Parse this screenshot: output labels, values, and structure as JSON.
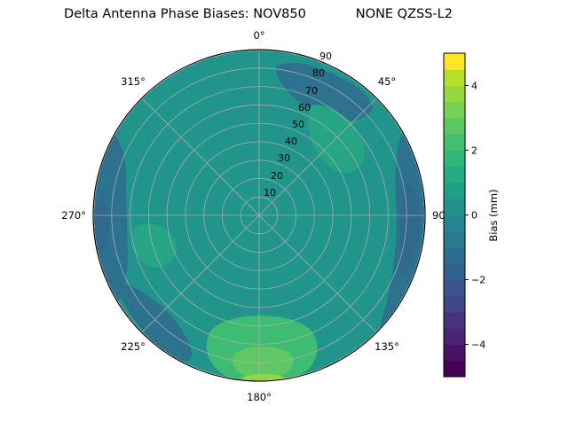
{
  "chart_data": {
    "type": "polar_contour",
    "title_left": "Delta Antenna Phase Biases: NOV850",
    "title_right": "NONE QZSS-L2",
    "theta_tick_labels": [
      "0°",
      "45°",
      "90",
      "135°",
      "180°",
      "225°",
      "270°",
      "315°"
    ],
    "theta_tick_degrees": [
      0,
      45,
      90,
      135,
      180,
      225,
      270,
      315
    ],
    "theta_zero_location": "top",
    "r_tick_labels": [
      "10",
      "20",
      "30",
      "40",
      "50",
      "60",
      "70",
      "80",
      "90"
    ],
    "r_tick_values": [
      10,
      20,
      30,
      40,
      50,
      60,
      70,
      80,
      90
    ],
    "r_max": 90,
    "r_label_angle_deg": 22.5,
    "grid_color": "#b0b0b0",
    "colorbar": {
      "label": "Bias (mm)",
      "tick_labels": [
        "4",
        "2",
        "0",
        "−2",
        "−4"
      ],
      "tick_values": [
        4,
        2,
        0,
        -2,
        -4
      ],
      "range": [
        -5,
        5
      ],
      "colormap": "viridis",
      "segment_colors": [
        "#440154",
        "#471365",
        "#482475",
        "#46327e",
        "#3f4788",
        "#39558c",
        "#33618d",
        "#2d6e8e",
        "#287a8e",
        "#23868e",
        "#1f938b",
        "#1f9f88",
        "#24ab82",
        "#30b679",
        "#44bf70",
        "#5bc863",
        "#76d153",
        "#95d840",
        "#b8de29",
        "#fde725"
      ]
    },
    "regions": [
      {
        "name": "background-sky",
        "bias_mm": "0 to 1",
        "color": "#21948b"
      },
      {
        "name": "north-edge-low",
        "bias_mm": "-1 to -2",
        "color": "#2c728e"
      },
      {
        "name": "east-edge-low",
        "bias_mm": "-1 to -2",
        "color": "#2c728e"
      },
      {
        "name": "east-edge-core",
        "bias_mm": "-2 to -3",
        "color": "#31688e"
      },
      {
        "name": "west-edge-low",
        "bias_mm": "-1 to -2",
        "color": "#2c728e"
      },
      {
        "name": "west-edge-core",
        "bias_mm": "-2 to -3",
        "color": "#31688e"
      },
      {
        "name": "southwest-edge-low",
        "bias_mm": "-1 to -2",
        "color": "#2c728e"
      },
      {
        "name": "south-lobe-high",
        "bias_mm": "1 to 2",
        "color": "#3fbc73"
      },
      {
        "name": "south-lobe-inner",
        "bias_mm": "2 to 3",
        "color": "#5ec962"
      },
      {
        "name": "south-edge-bright",
        "bias_mm": "3",
        "color": "#90d743"
      },
      {
        "name": "northeast-mid-high",
        "bias_mm": "1",
        "color": "#25a584"
      },
      {
        "name": "west-mid-high",
        "bias_mm": "1",
        "color": "#25a584"
      }
    ]
  }
}
